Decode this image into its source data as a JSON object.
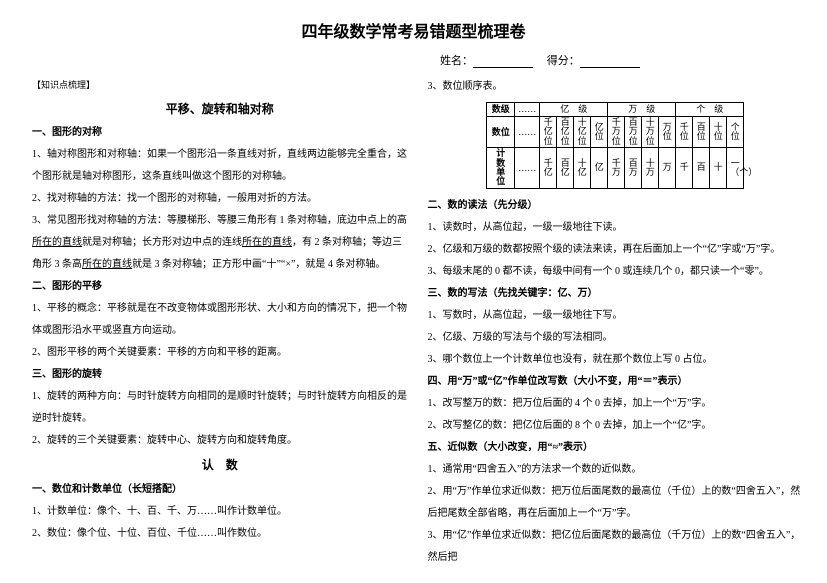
{
  "page": {
    "title": "四年级数学常考易错题型梳理卷",
    "name_label": "姓名：",
    "score_label": "得分："
  },
  "left": {
    "tag_knowledge": "【知识点梳理】",
    "h_transform": "平移、旋转和轴对称",
    "h_shape_sym": "一、图形的对称",
    "p_sym_1": "1、轴对称图形和对称轴：如果一个图形沿一条直线对折，直线两边能够完全重合，这个图形就是轴对称图形，这条直线叫做这个图形的对称轴。",
    "p_sym_2": "2、找对称轴的方法：找一个图形的对称轴，一般用对折的方法。",
    "p_sym_3a": "3、常见图形找对称轴的方法：等腰梯形、等腰三角形有 1 条对称轴，底边中点上的高",
    "p_sym_3u1": "所在的直线",
    "p_sym_3b": "就是对称轴；长方形对边中点的连线",
    "p_sym_3u2": "所在的直线",
    "p_sym_3c": "，有 2 条对称轴；等边三角形 3 条高",
    "p_sym_3u3": "所在的直线",
    "p_sym_3d": "就是 3 条对称轴；正方形中画“十”“×”，就是 4 条对称轴。",
    "h_shape_trans": "二、图形的平移",
    "p_trans_1": "1、平移的概念：平移就是在不改变物体或图形形状、大小和方向的情况下，把一个物体或图形沿水平或竖直方向运动。",
    "p_trans_2": "2、图形平移的两个关键要素：平移的方向和平移的距离。",
    "h_shape_rot": "三、图形的旋转",
    "p_rot_1": "1、旋转的两种方向：与时针旋转方向相同的是顺时针旋转；与时针旋转方向相反的是逆时针旋转。",
    "p_rot_2": "2、旋转的三个关键要素：旋转中心、旋转方向和旋转角度。",
    "h_recognize": "认　数",
    "h_digit_unit": "一、数位和计数单位（长短搭配）",
    "p_du_1": "1、计数单位：像个、十、百、千、万……叫作计数单位。",
    "p_du_2": "2、数位：像个位、十位、百位、千位……叫作数位。"
  },
  "right": {
    "p_order_title": "3、数位顺序表。",
    "table": {
      "row1": {
        "label": "数级",
        "dots": "……",
        "g1": "亿　级",
        "g2": "万　级",
        "g3": "个　级"
      },
      "row2": {
        "label": "数位",
        "dots": "……",
        "cells": [
          "千亿位",
          "百亿位",
          "十亿位",
          "亿位",
          "千万位",
          "百万位",
          "十万位",
          "万位",
          "千位",
          "百位",
          "十位",
          "个位"
        ]
      },
      "row3": {
        "label": "计数单位",
        "dots": "……",
        "cells": [
          "千亿",
          "百亿",
          "十亿",
          "亿",
          "千万",
          "百万",
          "十万",
          "万",
          "千",
          "百",
          "十",
          "一（个）"
        ]
      }
    },
    "h_read": "二、数的读法（先分级）",
    "p_r1": "1、读数时，从高位起，一级一级地往下读。",
    "p_r2": "2、亿级和万级的数都按照个级的读法来读，再在后面加上一个“亿”字或“万”字。",
    "p_r3": "3、每级末尾的 0 都不读，每级中间有一个 0 或连续几个 0，都只读一个“零”。",
    "h_write": "三、数的写法（先找关键字：亿、万）",
    "p_w1": "1、写数时，从高位起，一级一级地往下写。",
    "p_w2": "2、亿级、万级的写法与个级的写法相同。",
    "p_w3": "3、哪个数位上一个计数单位也没有，就在那个数位上写 0 占位。",
    "h_rewrite": "四、用“万”或“亿”作单位改写数（大小不变，用“＝”表示）",
    "p_rw1": "1、改写整万的数：把万位后面的 4 个 0 去掉，加上一个“万”字。",
    "p_rw2": "2、改写整亿的数：把亿位后面的 8 个 0 去掉，加上一个“亿”字。",
    "h_approx": "五、近似数（大小改变，用“≈”表示）",
    "p_a1": "1、通常用“四舍五入”的方法求一个数的近似数。",
    "p_a2": "2、用“万”作单位求近似数：把万位后面尾数的最高位（千位）上的数“四舍五入”，然后把尾数全部省略，再在后面加上一个“万”字。",
    "p_a3": "3、用“亿”作单位求近似数：把亿位后面尾数的最高位（千万位）上的数“四舍五入”，然后把"
  },
  "style": {
    "text_color": "#000000",
    "bg_color": "#ffffff",
    "title_fontsize_pt": 16,
    "body_fontsize_pt": 10,
    "line_height": 2.2
  }
}
